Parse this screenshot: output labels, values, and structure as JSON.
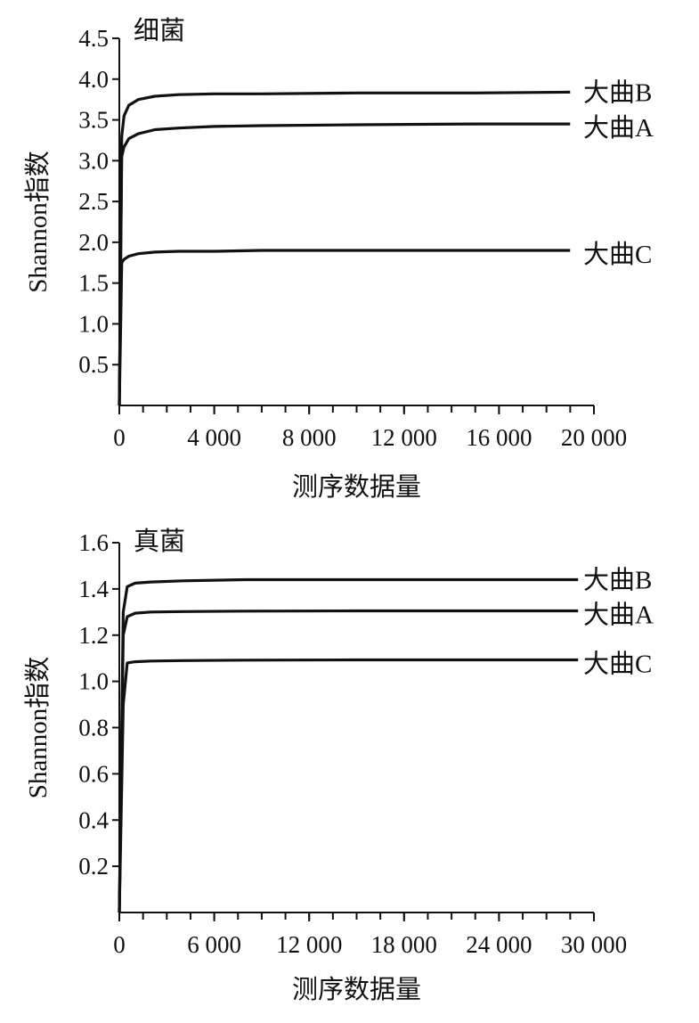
{
  "chart_data": [
    {
      "type": "line",
      "title": "细菌",
      "xlabel": "测序数据量",
      "ylabel": "Shannon指数",
      "xlim": [
        0,
        20000
      ],
      "ylim": [
        0,
        4.5
      ],
      "x_tick_values": [
        0,
        4000,
        8000,
        12000,
        16000,
        20000
      ],
      "x_tick_labels": [
        "0",
        "4 000",
        "8 000",
        "12 000",
        "16 000",
        "20 000"
      ],
      "y_tick_values": [
        0.5,
        1.0,
        1.5,
        2.0,
        2.5,
        3.0,
        3.5,
        4.0,
        4.5
      ],
      "y_tick_labels": [
        "0.5",
        "1.0",
        "1.5",
        "2.0",
        "2.5",
        "3.0",
        "3.5",
        "4.0",
        "4.5"
      ],
      "grid": false,
      "series": [
        {
          "name": "大曲B",
          "x": [
            0,
            100,
            200,
            400,
            800,
            1500,
            2500,
            4000,
            6000,
            10000,
            15000,
            19000
          ],
          "y": [
            0,
            3.3,
            3.55,
            3.68,
            3.75,
            3.79,
            3.81,
            3.82,
            3.82,
            3.83,
            3.83,
            3.84
          ]
        },
        {
          "name": "大曲A",
          "x": [
            0,
            100,
            200,
            400,
            800,
            1500,
            2500,
            4000,
            6000,
            10000,
            15000,
            19000
          ],
          "y": [
            0,
            3.05,
            3.17,
            3.27,
            3.33,
            3.38,
            3.4,
            3.42,
            3.43,
            3.44,
            3.45,
            3.45
          ]
        },
        {
          "name": "大曲C",
          "x": [
            0,
            100,
            200,
            400,
            800,
            1500,
            2500,
            4000,
            6000,
            10000,
            15000,
            19000
          ],
          "y": [
            0,
            1.75,
            1.79,
            1.83,
            1.86,
            1.88,
            1.89,
            1.89,
            1.9,
            1.9,
            1.9,
            1.9
          ]
        }
      ]
    },
    {
      "type": "line",
      "title": "真菌",
      "xlabel": "测序数据量",
      "ylabel": "Shannon指数",
      "xlim": [
        0,
        30000
      ],
      "ylim": [
        0,
        1.6
      ],
      "x_tick_values": [
        0,
        6000,
        12000,
        18000,
        24000,
        30000
      ],
      "x_tick_labels": [
        "0",
        "6 000",
        "12 000",
        "18 000",
        "24 000",
        "30 000"
      ],
      "y_tick_values": [
        0.2,
        0.4,
        0.6,
        0.8,
        1.0,
        1.2,
        1.4,
        1.6
      ],
      "y_tick_labels": [
        "0.2",
        "0.4",
        "0.6",
        "0.8",
        "1.0",
        "1.2",
        "1.4",
        "1.6"
      ],
      "grid": false,
      "series": [
        {
          "name": "大曲B",
          "x": [
            0,
            250,
            500,
            1000,
            2000,
            4000,
            8000,
            15000,
            29000
          ],
          "y": [
            0,
            1.3,
            1.41,
            1.425,
            1.43,
            1.435,
            1.44,
            1.44,
            1.44
          ]
        },
        {
          "name": "大曲A",
          "x": [
            0,
            250,
            500,
            1000,
            2000,
            4000,
            8000,
            15000,
            29000
          ],
          "y": [
            0,
            1.2,
            1.28,
            1.295,
            1.3,
            1.302,
            1.304,
            1.305,
            1.305
          ]
        },
        {
          "name": "大曲C",
          "x": [
            0,
            250,
            500,
            1000,
            2000,
            4000,
            8000,
            15000,
            29000
          ],
          "y": [
            0,
            0.9,
            1.08,
            1.085,
            1.088,
            1.09,
            1.092,
            1.093,
            1.093
          ]
        }
      ]
    }
  ]
}
